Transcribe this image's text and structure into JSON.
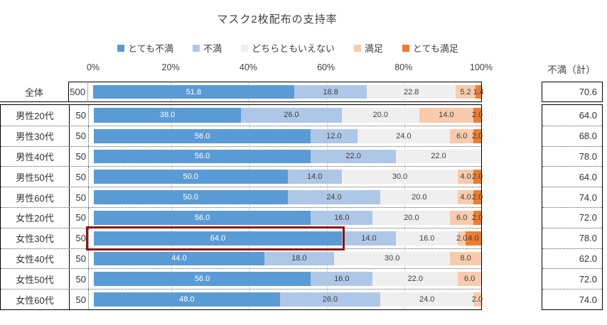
{
  "title": "マスク2枚配布の支持率",
  "legend": {
    "items": [
      {
        "label": "とても不満",
        "color": "#5B9BD5"
      },
      {
        "label": "不満",
        "color": "#AEC7E7"
      },
      {
        "label": "どちらともいえない",
        "color": "#EFEFEF"
      },
      {
        "label": "満足",
        "color": "#F8CBAD"
      },
      {
        "label": "とても満足",
        "color": "#ED7D31"
      }
    ]
  },
  "axis": {
    "ticks": [
      "0%",
      "20%",
      "40%",
      "60%",
      "80%",
      "100%"
    ],
    "min": 0,
    "max": 100
  },
  "right_column": {
    "header": "不満（計）"
  },
  "highlight": {
    "row": "女性30代",
    "segment_index": 0,
    "border_color": "#8E1414"
  },
  "colors": {
    "gridline": "#D9D9D9",
    "solid_border": "#000000",
    "dotted_border": "#555555",
    "label_on_dark": "#FFFFFF",
    "label_on_light": "#404040"
  },
  "chart_data": {
    "type": "bar",
    "stacked": true,
    "orientation": "horizontal",
    "title": "マスク2枚配布の支持率",
    "xlim": [
      0,
      100
    ],
    "xticks": [
      "0%",
      "20%",
      "40%",
      "60%",
      "80%",
      "100%"
    ],
    "legend_position": "top",
    "grid": true,
    "series_names": [
      "とても不満",
      "不満",
      "どちらともいえない",
      "満足",
      "とても満足"
    ],
    "series_colors": [
      "#5B9BD5",
      "#AEC7E7",
      "#EFEFEF",
      "#F8CBAD",
      "#ED7D31"
    ],
    "rows": [
      {
        "label": "全体",
        "n": "500",
        "values": [
          51.8,
          18.8,
          22.8,
          5.2,
          1.4
        ],
        "total_dissatisfied": "70.6"
      },
      {
        "label": "男性20代",
        "n": "50",
        "values": [
          38.0,
          26.0,
          20.0,
          14.0,
          2.0
        ],
        "total_dissatisfied": "64.0"
      },
      {
        "label": "男性30代",
        "n": "50",
        "values": [
          56.0,
          12.0,
          24.0,
          6.0,
          2.0
        ],
        "total_dissatisfied": "68.0"
      },
      {
        "label": "男性40代",
        "n": "50",
        "values": [
          56.0,
          22.0,
          22.0,
          0,
          0
        ],
        "total_dissatisfied": "78.0"
      },
      {
        "label": "男性50代",
        "n": "50",
        "values": [
          50.0,
          14.0,
          30.0,
          4.0,
          2.0
        ],
        "total_dissatisfied": "64.0"
      },
      {
        "label": "男性60代",
        "n": "50",
        "values": [
          50.0,
          24.0,
          20.0,
          4.0,
          2.0
        ],
        "total_dissatisfied": "74.0"
      },
      {
        "label": "女性20代",
        "n": "50",
        "values": [
          56.0,
          16.0,
          20.0,
          6.0,
          2.0
        ],
        "total_dissatisfied": "72.0"
      },
      {
        "label": "女性30代",
        "n": "50",
        "values": [
          64.0,
          14.0,
          16.0,
          2.0,
          4.0
        ],
        "total_dissatisfied": "78.0"
      },
      {
        "label": "女性40代",
        "n": "50",
        "values": [
          44.0,
          18.0,
          30.0,
          8.0,
          0
        ],
        "total_dissatisfied": "62.0"
      },
      {
        "label": "女性50代",
        "n": "50",
        "values": [
          56.0,
          16.0,
          22.0,
          6.0,
          0
        ],
        "total_dissatisfied": "72.0"
      },
      {
        "label": "女性60代",
        "n": "50",
        "values": [
          48.0,
          26.0,
          24.0,
          2.0,
          0
        ],
        "total_dissatisfied": "74.0"
      }
    ]
  }
}
